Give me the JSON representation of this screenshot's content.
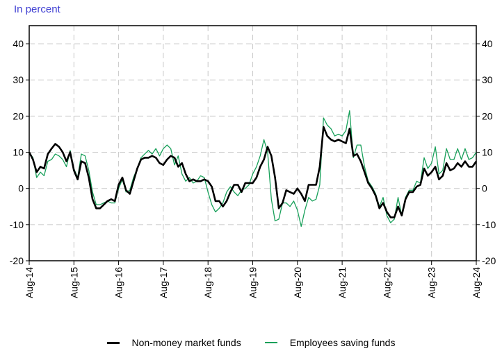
{
  "chart_data": {
    "type": "line",
    "unit_label": "In percent",
    "x_tick_labels": [
      "Aug-14",
      "Aug-15",
      "Aug-16",
      "Aug-17",
      "Aug-18",
      "Aug-19",
      "Aug-20",
      "Aug-21",
      "Aug-22",
      "Aug-23",
      "Aug-24"
    ],
    "y_tick_labels": [
      "-20",
      "-10",
      "0",
      "10",
      "20",
      "30",
      "40"
    ],
    "ylim": [
      -20,
      45
    ],
    "grid": true,
    "legend_position": "bottom",
    "series": [
      {
        "name": "Non-money market funds",
        "color": "#000000",
        "values": [
          10,
          8,
          4.5,
          6,
          5.5,
          9.5,
          11,
          12.3,
          11.5,
          10,
          7.5,
          10,
          5,
          2.5,
          7.5,
          7,
          3,
          -3,
          -5.5,
          -5.5,
          -4.5,
          -3.5,
          -3,
          -3.5,
          1,
          3,
          -0.5,
          -1.5,
          2,
          5.5,
          8,
          8.5,
          8.5,
          9,
          8.5,
          7,
          6.5,
          8,
          9,
          8.5,
          6,
          7,
          4,
          2,
          2.5,
          2,
          2,
          2.5,
          2,
          0.5,
          -3.5,
          -3.5,
          -5,
          -3.5,
          -1,
          1,
          1,
          -1,
          1.5,
          1.5,
          1.5,
          3,
          6,
          8,
          11.5,
          9,
          3,
          -5.5,
          -4,
          -0.5,
          -1,
          -1.5,
          0,
          -1.5,
          -3.5,
          1,
          1,
          1,
          6,
          17,
          14.5,
          13.5,
          13,
          13.5,
          13,
          12.5,
          16.5,
          9,
          9.5,
          7.5,
          4.5,
          1.5,
          0,
          -2,
          -5.5,
          -4,
          -6.5,
          -8,
          -8,
          -5,
          -7.5,
          -3,
          -1,
          -1,
          0.5,
          1,
          5.5,
          3.5,
          4.5,
          6,
          2.5,
          3.5,
          7,
          5,
          5.5,
          7,
          6,
          7.5,
          6,
          6,
          7.5
        ]
      },
      {
        "name": "Employees saving funds",
        "color": "#18a05a",
        "values": [
          10,
          8.5,
          3,
          4.5,
          3.5,
          7.5,
          8,
          9.5,
          9,
          8,
          6,
          10.5,
          5.5,
          3,
          9.5,
          9,
          5,
          -1,
          -4.5,
          -4.5,
          -4,
          -3.5,
          -4,
          -4,
          0,
          2.5,
          -1,
          -0.5,
          3,
          5.5,
          8.5,
          9.5,
          10.5,
          9.5,
          11,
          9,
          11,
          12,
          11,
          6.5,
          9,
          4,
          2,
          3,
          1.5,
          2,
          3.5,
          3,
          -1,
          -4.5,
          -6.5,
          -5.5,
          -4,
          -1,
          0.5,
          -1,
          -2,
          -0.5,
          0,
          1,
          4,
          6,
          9,
          13.5,
          10,
          -3,
          -9,
          -8.5,
          -4,
          -4,
          -5,
          -3.5,
          -6,
          -10.5,
          -6,
          -2.5,
          -3.5,
          -3,
          1,
          19.5,
          17.5,
          16.5,
          14.5,
          15,
          14.5,
          16,
          21.5,
          8.5,
          12,
          12,
          6,
          2,
          0.5,
          -1.5,
          -5,
          -2.5,
          -7.5,
          -9.5,
          -8.5,
          -2.5,
          -7.5,
          -2.5,
          -0.5,
          -0.5,
          2,
          1.5,
          8.5,
          5.5,
          7,
          11.5,
          4,
          5,
          11,
          8,
          8,
          11,
          8,
          11,
          8,
          8.5,
          10
        ]
      }
    ]
  }
}
